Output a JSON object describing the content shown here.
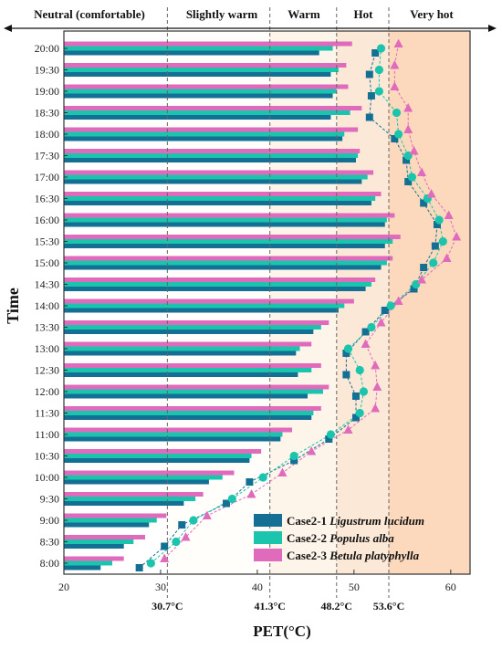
{
  "chart_data": {
    "type": "bar",
    "orientation": "horizontal",
    "xlabel": "PET(°C)",
    "ylabel": "Time",
    "xlim": [
      20,
      62
    ],
    "xticks": [
      "20",
      "30",
      "40",
      "50",
      "60"
    ],
    "categories": [
      "8:00",
      "8:30",
      "9:00",
      "9:30",
      "10:00",
      "10:30",
      "11:00",
      "11:30",
      "12:00",
      "12:30",
      "13:00",
      "13:30",
      "14:00",
      "14:30",
      "15:00",
      "15:30",
      "16:00",
      "16:30",
      "17:00",
      "17:30",
      "18:00",
      "18:30",
      "19:00",
      "19:30",
      "20:00"
    ],
    "series": [
      {
        "name": "Case2-1",
        "species": "Ligustrum lucidum",
        "color": "#136f94",
        "bars": [
          23.8,
          26.2,
          28.8,
          32.4,
          35.0,
          39.2,
          42.4,
          45.6,
          45.2,
          44.2,
          44.0,
          45.8,
          48.4,
          51.2,
          52.8,
          53.2,
          53.2,
          51.8,
          50.8,
          50.2,
          48.8,
          47.6,
          47.8,
          47.6,
          46.4
        ],
        "points": [
          27.8,
          30.4,
          32.2,
          36.8,
          39.2,
          43.8,
          47.4,
          50.2,
          50.2,
          49.2,
          49.2,
          51.2,
          53.2,
          56.2,
          57.2,
          58.4,
          58.6,
          57.2,
          55.6,
          55.4,
          54.2,
          51.6,
          51.8,
          51.6,
          52.2
        ]
      },
      {
        "name": "Case2-2",
        "species": "Populus alba",
        "color": "#1bc4ad",
        "bars": [
          25.0,
          27.2,
          29.6,
          33.6,
          36.4,
          39.4,
          42.6,
          45.8,
          46.8,
          45.6,
          44.4,
          46.6,
          49.0,
          51.8,
          53.4,
          54.0,
          53.4,
          52.2,
          51.4,
          50.4,
          49.0,
          49.6,
          48.2,
          48.4,
          47.8
        ],
        "points": [
          29.0,
          31.6,
          33.4,
          37.4,
          40.6,
          43.8,
          47.6,
          50.6,
          51.0,
          50.6,
          49.4,
          51.8,
          53.8,
          56.4,
          58.2,
          59.2,
          58.8,
          57.6,
          56.0,
          55.6,
          54.6,
          54.4,
          52.6,
          52.6,
          52.8
        ]
      },
      {
        "name": "Case2-3",
        "species": "Betula platyphylla",
        "color": "#e06bbd",
        "bars": [
          26.2,
          28.4,
          30.6,
          34.4,
          37.6,
          40.4,
          43.6,
          46.6,
          47.4,
          46.6,
          45.6,
          47.4,
          50.0,
          52.2,
          54.0,
          54.8,
          54.2,
          52.8,
          52.0,
          50.6,
          50.4,
          50.8,
          49.4,
          49.2,
          49.8
        ],
        "points": [
          30.4,
          32.6,
          34.8,
          39.4,
          42.6,
          45.6,
          49.4,
          52.2,
          52.4,
          52.2,
          51.2,
          52.8,
          54.6,
          57.0,
          59.6,
          60.6,
          59.8,
          58.0,
          57.0,
          56.2,
          55.6,
          55.6,
          54.2,
          54.2,
          54.6
        ]
      }
    ],
    "thresholds": [
      {
        "value": 30.7,
        "label": "30.7°C"
      },
      {
        "value": 41.3,
        "label": "41.3°C"
      },
      {
        "value": 48.2,
        "label": "48.2°C"
      },
      {
        "value": 53.6,
        "label": "53.6°C"
      }
    ],
    "zones": [
      {
        "label": "Neutral (comfortable)",
        "from": 20,
        "to": 30.7,
        "color": "#ffffff"
      },
      {
        "label": "Slightly warm",
        "from": 30.7,
        "to": 41.3,
        "color": "#fffefb"
      },
      {
        "label": "Warm",
        "from": 41.3,
        "to": 48.2,
        "color": "#fdf4ea"
      },
      {
        "label": "Hot",
        "from": 48.2,
        "to": 53.6,
        "color": "#fce8d6"
      },
      {
        "label": "Very hot",
        "from": 53.6,
        "to": 62,
        "color": "#fcd9bd"
      }
    ],
    "grid": false,
    "legend_position": "bottom-right"
  }
}
